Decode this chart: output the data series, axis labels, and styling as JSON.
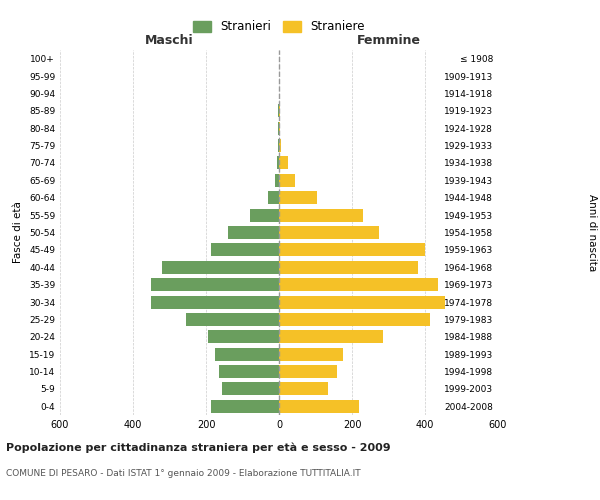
{
  "age_groups": [
    "0-4",
    "5-9",
    "10-14",
    "15-19",
    "20-24",
    "25-29",
    "30-34",
    "35-39",
    "40-44",
    "45-49",
    "50-54",
    "55-59",
    "60-64",
    "65-69",
    "70-74",
    "75-79",
    "80-84",
    "85-89",
    "90-94",
    "95-99",
    "100+"
  ],
  "birth_years": [
    "2004-2008",
    "1999-2003",
    "1994-1998",
    "1989-1993",
    "1984-1988",
    "1979-1983",
    "1974-1978",
    "1969-1973",
    "1964-1968",
    "1959-1963",
    "1954-1958",
    "1949-1953",
    "1944-1948",
    "1939-1943",
    "1934-1938",
    "1929-1933",
    "1924-1928",
    "1919-1923",
    "1914-1918",
    "1909-1913",
    "≤ 1908"
  ],
  "maschi": [
    185,
    155,
    165,
    175,
    195,
    255,
    350,
    350,
    320,
    185,
    140,
    80,
    30,
    10,
    5,
    3,
    2,
    2,
    0,
    0,
    0
  ],
  "femmine": [
    220,
    135,
    160,
    175,
    285,
    415,
    455,
    435,
    380,
    400,
    275,
    230,
    105,
    45,
    25,
    5,
    4,
    3,
    0,
    0,
    0
  ],
  "maschi_color": "#6a9e5e",
  "femmine_color": "#f5c127",
  "background_color": "#ffffff",
  "grid_color": "#cccccc",
  "center_line_color": "#999999",
  "title": "Popolazione per cittadinanza straniera per età e sesso - 2009",
  "subtitle": "COMUNE DI PESARO - Dati ISTAT 1° gennaio 2009 - Elaborazione TUTTITALIA.IT",
  "xlabel_left": "Maschi",
  "xlabel_right": "Femmine",
  "ylabel_left": "Fasce di età",
  "ylabel_right": "Anni di nascita",
  "legend_maschi": "Stranieri",
  "legend_femmine": "Straniere",
  "xlim": 600,
  "bar_height": 0.75
}
